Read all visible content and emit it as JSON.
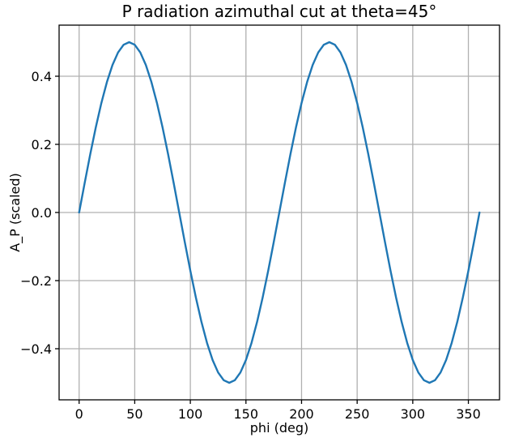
{
  "chart_data": {
    "type": "line",
    "title": "P radiation azimuthal cut at theta=45°",
    "xlabel": "phi (deg)",
    "ylabel": "A_P (scaled)",
    "xlim": [
      -18,
      378
    ],
    "ylim": [
      -0.55,
      0.55
    ],
    "xticks": [
      0,
      50,
      100,
      150,
      200,
      250,
      300,
      350
    ],
    "xtick_labels": [
      "0",
      "50",
      "100",
      "150",
      "200",
      "250",
      "300",
      "350"
    ],
    "yticks": [
      -0.4,
      -0.2,
      0.0,
      0.2,
      0.4
    ],
    "ytick_labels": [
      "−0.4",
      "−0.2",
      "0.0",
      "0.2",
      "0.4"
    ],
    "grid": true,
    "legend_position": "none",
    "colors": {
      "line": "#1f77b4",
      "grid": "#b0b0b0",
      "spine": "#000000",
      "text": "#000000",
      "background": "#ffffff"
    },
    "series": [
      {
        "x": [
          0,
          5,
          10,
          15,
          20,
          25,
          30,
          35,
          40,
          45,
          50,
          55,
          60,
          65,
          70,
          75,
          80,
          85,
          90,
          95,
          100,
          105,
          110,
          115,
          120,
          125,
          130,
          135,
          140,
          145,
          150,
          155,
          160,
          165,
          170,
          175,
          180,
          185,
          190,
          195,
          200,
          205,
          210,
          215,
          220,
          225,
          230,
          235,
          240,
          245,
          250,
          255,
          260,
          265,
          270,
          275,
          280,
          285,
          290,
          295,
          300,
          305,
          310,
          315,
          320,
          325,
          330,
          335,
          340,
          345,
          350,
          355,
          360
        ],
        "y": [
          0.0,
          0.0868,
          0.171,
          0.25,
          0.3214,
          0.383,
          0.433,
          0.4698,
          0.4924,
          0.5,
          0.4924,
          0.4698,
          0.433,
          0.383,
          0.3214,
          0.25,
          0.171,
          0.0868,
          0.0,
          -0.0868,
          -0.171,
          -0.25,
          -0.3214,
          -0.383,
          -0.433,
          -0.4698,
          -0.4924,
          -0.5,
          -0.4924,
          -0.4698,
          -0.433,
          -0.383,
          -0.3214,
          -0.25,
          -0.171,
          -0.0868,
          0.0,
          0.0868,
          0.171,
          0.25,
          0.3214,
          0.383,
          0.433,
          0.4698,
          0.4924,
          0.5,
          0.4924,
          0.4698,
          0.433,
          0.383,
          0.3214,
          0.25,
          0.171,
          0.0868,
          0.0,
          -0.0868,
          -0.171,
          -0.25,
          -0.3214,
          -0.383,
          -0.433,
          -0.4698,
          -0.4924,
          -0.5,
          -0.4924,
          -0.4698,
          -0.433,
          -0.383,
          -0.3214,
          -0.25,
          -0.171,
          -0.0868,
          0.0
        ]
      }
    ]
  }
}
